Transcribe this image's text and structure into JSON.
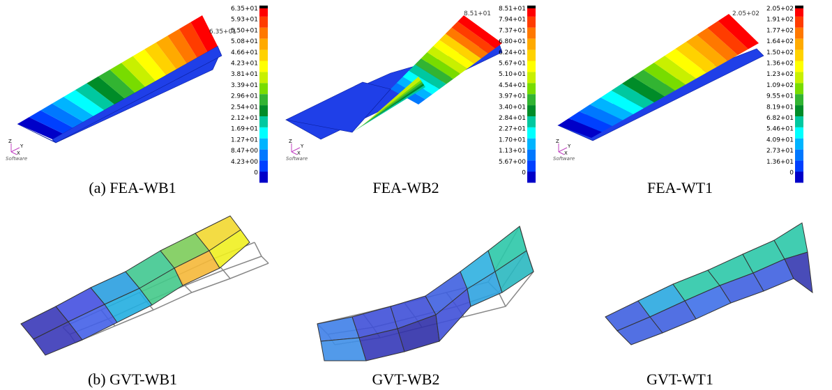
{
  "triad": {
    "z": "Z",
    "y": "Y",
    "x": "X",
    "logo": "Software"
  },
  "fea": [
    {
      "caption": "(a) FEA-WB1",
      "peak_label": "6.35+01",
      "colorbar": [
        "6.35+01",
        "5.93+01",
        "5.50+01",
        "5.08+01",
        "4.66+01",
        "4.23+01",
        "3.81+01",
        "3.39+01",
        "2.96+01",
        "2.54+01",
        "2.12+01",
        "1.69+01",
        "1.27+01",
        "8.47+00",
        "4.23+00",
        "0"
      ]
    },
    {
      "caption": "FEA-WB2",
      "peak_label": "8.51+01",
      "colorbar": [
        "8.51+01",
        "7.94+01",
        "7.37+01",
        "6.80+01",
        "6.24+01",
        "5.67+01",
        "5.10+01",
        "4.54+01",
        "3.97+01",
        "3.40+01",
        "2.84+01",
        "2.27+01",
        "1.70+01",
        "1.13+01",
        "5.67+00",
        "0"
      ]
    },
    {
      "caption": "FEA-WT1",
      "peak_label": "2.05+02",
      "colorbar": [
        "2.05+02",
        "1.91+02",
        "1.77+02",
        "1.64+02",
        "1.50+02",
        "1.36+02",
        "1.23+02",
        "1.09+02",
        "9.55+01",
        "8.19+01",
        "6.82+01",
        "5.46+01",
        "4.09+01",
        "2.73+01",
        "1.36+01",
        "0"
      ]
    }
  ],
  "gvt": [
    {
      "caption": "(b) GVT-WB1"
    },
    {
      "caption": "GVT-WB2"
    },
    {
      "caption": "GVT-WT1"
    }
  ]
}
